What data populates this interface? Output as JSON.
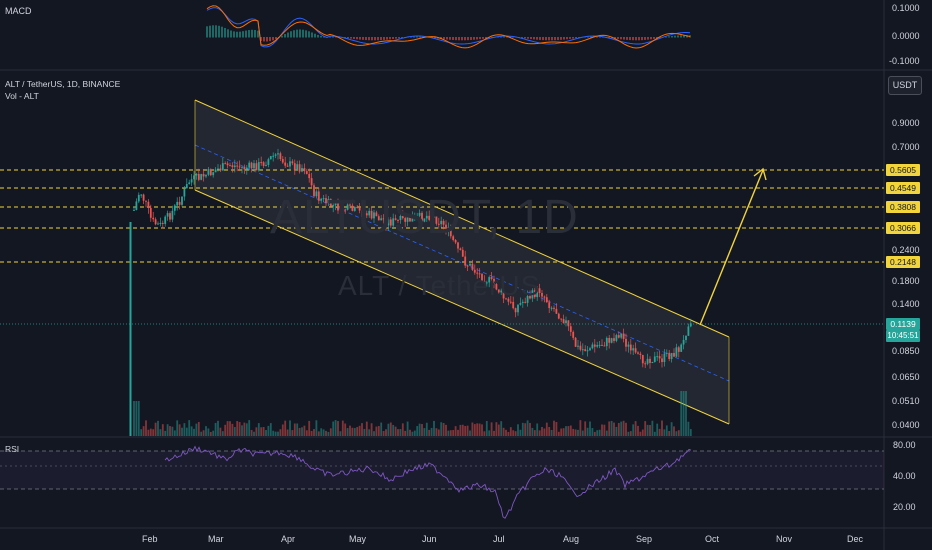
{
  "symbol": {
    "title": "ALT / TetherUS, 1D, BINANCE",
    "volume_label": "Vol - ALT",
    "watermark_ticker": "ALTUSDT, 1D",
    "watermark_name": "ALT / TetherUS",
    "currency_button": "USDT"
  },
  "macd": {
    "label": "MACD",
    "axis": [
      "0.1000",
      "0.0000",
      "-0.1000"
    ]
  },
  "rsi": {
    "label": "RSI",
    "axis": [
      "80.00",
      "40.00",
      "20.00"
    ]
  },
  "price_axis": [
    "0.9000",
    "0.7000",
    "0.1800",
    "0.2400",
    "0.1400",
    "0.0850",
    "0.0650",
    "0.0510",
    "0.0400"
  ],
  "price_levels": [
    "0.5605",
    "0.4549",
    "0.3808",
    "0.3066",
    "0.2148"
  ],
  "current_price": "0.1139",
  "countdown": "10:45:51",
  "time_axis": [
    "Feb",
    "Mar",
    "Apr",
    "May",
    "Jun",
    "Jul",
    "Aug",
    "Sep",
    "Oct",
    "Nov",
    "Dec"
  ],
  "colors": {
    "background": "#131722",
    "up": "#26a69a",
    "down": "#ef5350",
    "channel": "#f2d43b",
    "level_line": "#f2d43b",
    "macd_line": "#2962ff",
    "signal_line": "#ff6d00",
    "rsi_line": "#7e57c2"
  }
}
